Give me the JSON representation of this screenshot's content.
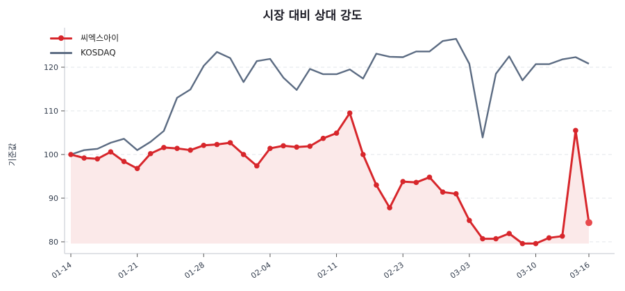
{
  "chart": {
    "title": "시장 대비 상대 강도",
    "ylabel": "기준값"
  },
  "legend": {
    "items": [
      {
        "label": "씨엑스아이",
        "color": "#d7262b",
        "marker": "circle"
      },
      {
        "label": "KOSDAQ",
        "color": "#5b6b82",
        "marker": "none"
      }
    ]
  },
  "colors": {
    "stock": "#d7262b",
    "index": "#5b6b82",
    "fill": "#fbe9e9",
    "grid": "#e2e4e8",
    "axis": "#d5d8de"
  },
  "chart_data": {
    "type": "line",
    "title": "시장 대비 상대 강도",
    "xlabel": "",
    "ylabel": "기준값",
    "ylim": [
      77.5,
      129
    ],
    "yticks": [
      80,
      90,
      100,
      110,
      120
    ],
    "xtick_labels": [
      "01-14",
      "01-21",
      "01-28",
      "02-04",
      "02-11",
      "02-23",
      "03-03",
      "03-10",
      "03-16"
    ],
    "xtick_indices": [
      0,
      5,
      10,
      15,
      20,
      25,
      30,
      35,
      39
    ],
    "grid": "y-dashed",
    "legend_position": "upper left",
    "fill_baseline": 79.6,
    "series": [
      {
        "name": "씨엑스아이",
        "values": [
          100.0,
          99.2,
          99.0,
          100.6,
          98.4,
          96.8,
          100.2,
          101.6,
          101.4,
          101.0,
          102.1,
          102.3,
          102.7,
          100.0,
          97.4,
          101.4,
          102.0,
          101.7,
          101.9,
          103.7,
          104.9,
          109.5,
          100.0,
          93.0,
          87.8,
          93.8,
          93.6,
          94.8,
          91.4,
          91.0,
          84.9,
          80.7,
          80.7,
          81.9,
          79.6,
          79.6,
          80.9,
          81.3,
          105.5,
          84.4
        ]
      },
      {
        "name": "KOSDAQ",
        "values": [
          100.0,
          101.0,
          101.3,
          102.7,
          103.6,
          101.0,
          102.9,
          105.4,
          113.0,
          114.9,
          120.3,
          123.5,
          122.1,
          116.6,
          121.4,
          121.9,
          117.6,
          114.8,
          119.6,
          118.4,
          118.4,
          119.5,
          117.4,
          123.1,
          122.4,
          122.3,
          123.6,
          123.6,
          126.0,
          126.5,
          120.8,
          103.9,
          118.5,
          122.5,
          117.0,
          120.7,
          120.7,
          121.8,
          122.3,
          120.8
        ]
      }
    ]
  }
}
